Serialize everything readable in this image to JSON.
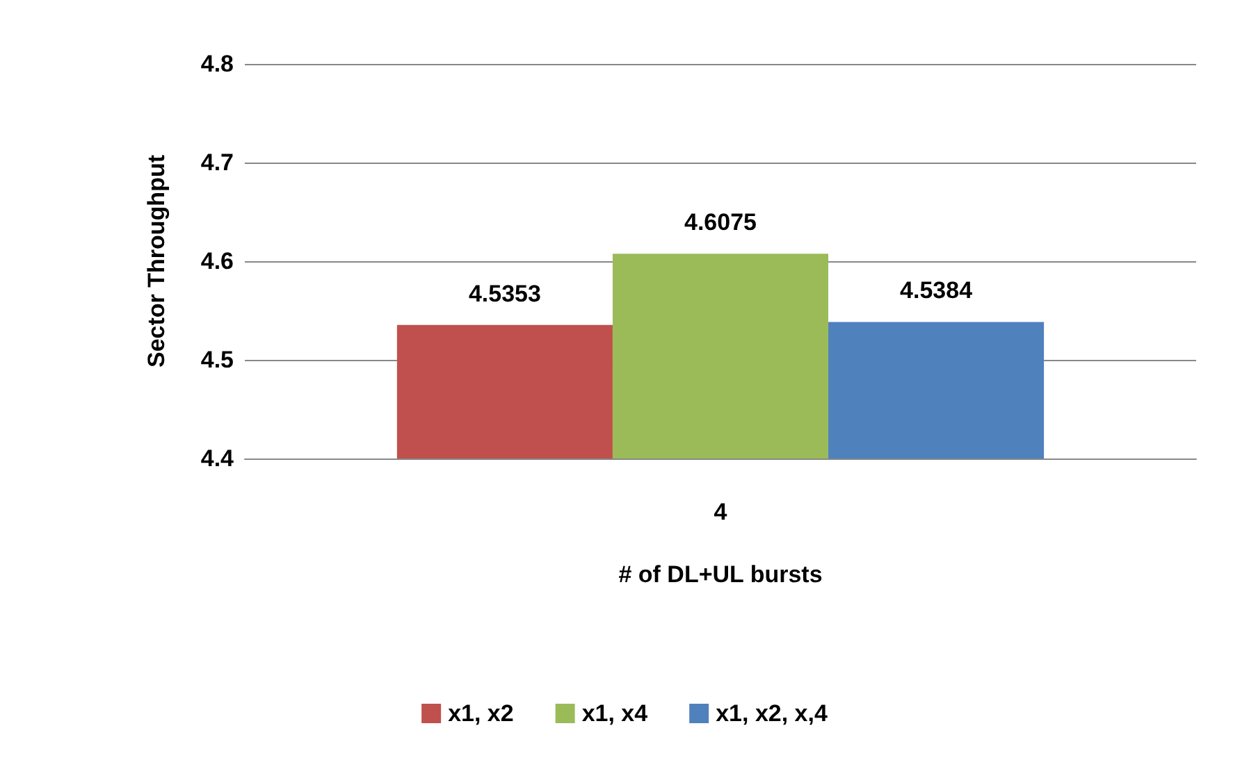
{
  "chart_data": {
    "type": "bar",
    "xlabel": "# of DL+UL bursts",
    "ylabel": "Sector Throughput",
    "categories": [
      "4"
    ],
    "series": [
      {
        "name": "x1, x2",
        "color": "#c0504d",
        "values": [
          4.5353
        ]
      },
      {
        "name": "x1, x4",
        "color": "#9bbb59",
        "values": [
          4.6075
        ]
      },
      {
        "name": "x1, x2, x,4",
        "color": "#4f81bd",
        "values": [
          4.5384
        ]
      }
    ],
    "ylim": [
      4.4,
      4.8
    ],
    "yticks": [
      4.4,
      4.5,
      4.6,
      4.7,
      4.8
    ],
    "grid": "y",
    "legend": "bottom",
    "data_labels": true
  }
}
